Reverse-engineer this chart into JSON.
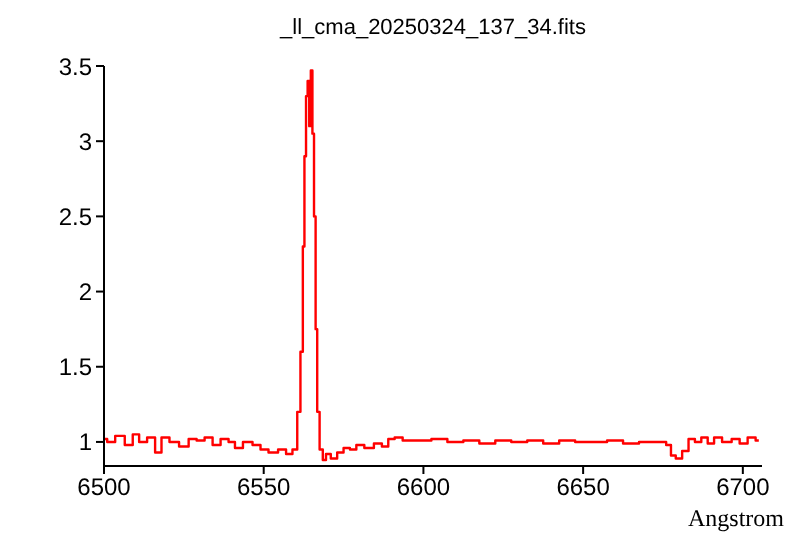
{
  "chart_data": {
    "type": "step",
    "title": "_ll_cma_20250324_137_34.fits",
    "xlabel": "Angstrom",
    "x": [
      6500,
      6502,
      6505,
      6508,
      6510,
      6512,
      6515,
      6517,
      6519,
      6522,
      6525,
      6528,
      6530,
      6533,
      6535,
      6538,
      6540,
      6542,
      6545,
      6548,
      6550,
      6553,
      6556,
      6558,
      6560,
      6561,
      6562,
      6562.5,
      6563,
      6563.5,
      6564,
      6564.5,
      6565,
      6565.5,
      6566,
      6566.5,
      6567,
      6568,
      6569,
      6570,
      6572,
      6574,
      6576,
      6578,
      6580,
      6583,
      6586,
      6588,
      6590,
      6592,
      6595,
      6600,
      6605,
      6610,
      6615,
      6620,
      6625,
      6630,
      6635,
      6640,
      6645,
      6650,
      6655,
      6660,
      6665,
      6670,
      6675,
      6677,
      6678,
      6680,
      6682,
      6684,
      6686,
      6688,
      6690,
      6692,
      6695,
      6698,
      6700,
      6703,
      6705
    ],
    "values": [
      1.02,
      1.0,
      1.04,
      0.98,
      1.05,
      1.0,
      1.03,
      0.93,
      1.03,
      1.0,
      0.97,
      1.02,
      1.01,
      1.03,
      0.98,
      1.02,
      1.0,
      0.96,
      1.0,
      0.98,
      0.95,
      0.93,
      0.95,
      0.92,
      0.95,
      1.2,
      1.6,
      2.3,
      2.9,
      3.3,
      3.4,
      3.1,
      3.47,
      3.05,
      2.5,
      1.75,
      1.2,
      0.95,
      0.88,
      0.92,
      0.89,
      0.93,
      0.96,
      0.95,
      0.98,
      0.96,
      0.99,
      0.97,
      1.02,
      1.03,
      1.01,
      1.01,
      1.02,
      1.0,
      1.01,
      0.99,
      1.01,
      1.0,
      1.01,
      0.99,
      1.01,
      1.0,
      1.0,
      1.01,
      0.99,
      1.0,
      1.0,
      0.98,
      0.91,
      0.89,
      0.94,
      1.02,
      1.0,
      1.03,
      0.99,
      1.03,
      1.0,
      1.02,
      0.99,
      1.03,
      1.01
    ],
    "color": "#ff0000",
    "xlim": [
      6500,
      6706
    ],
    "xticks": [
      6500,
      6550,
      6600,
      6650,
      6700
    ],
    "ylim": [
      0.84,
      3.5
    ],
    "yticks": [
      1,
      1.5,
      2,
      2.5,
      3,
      3.5
    ]
  }
}
